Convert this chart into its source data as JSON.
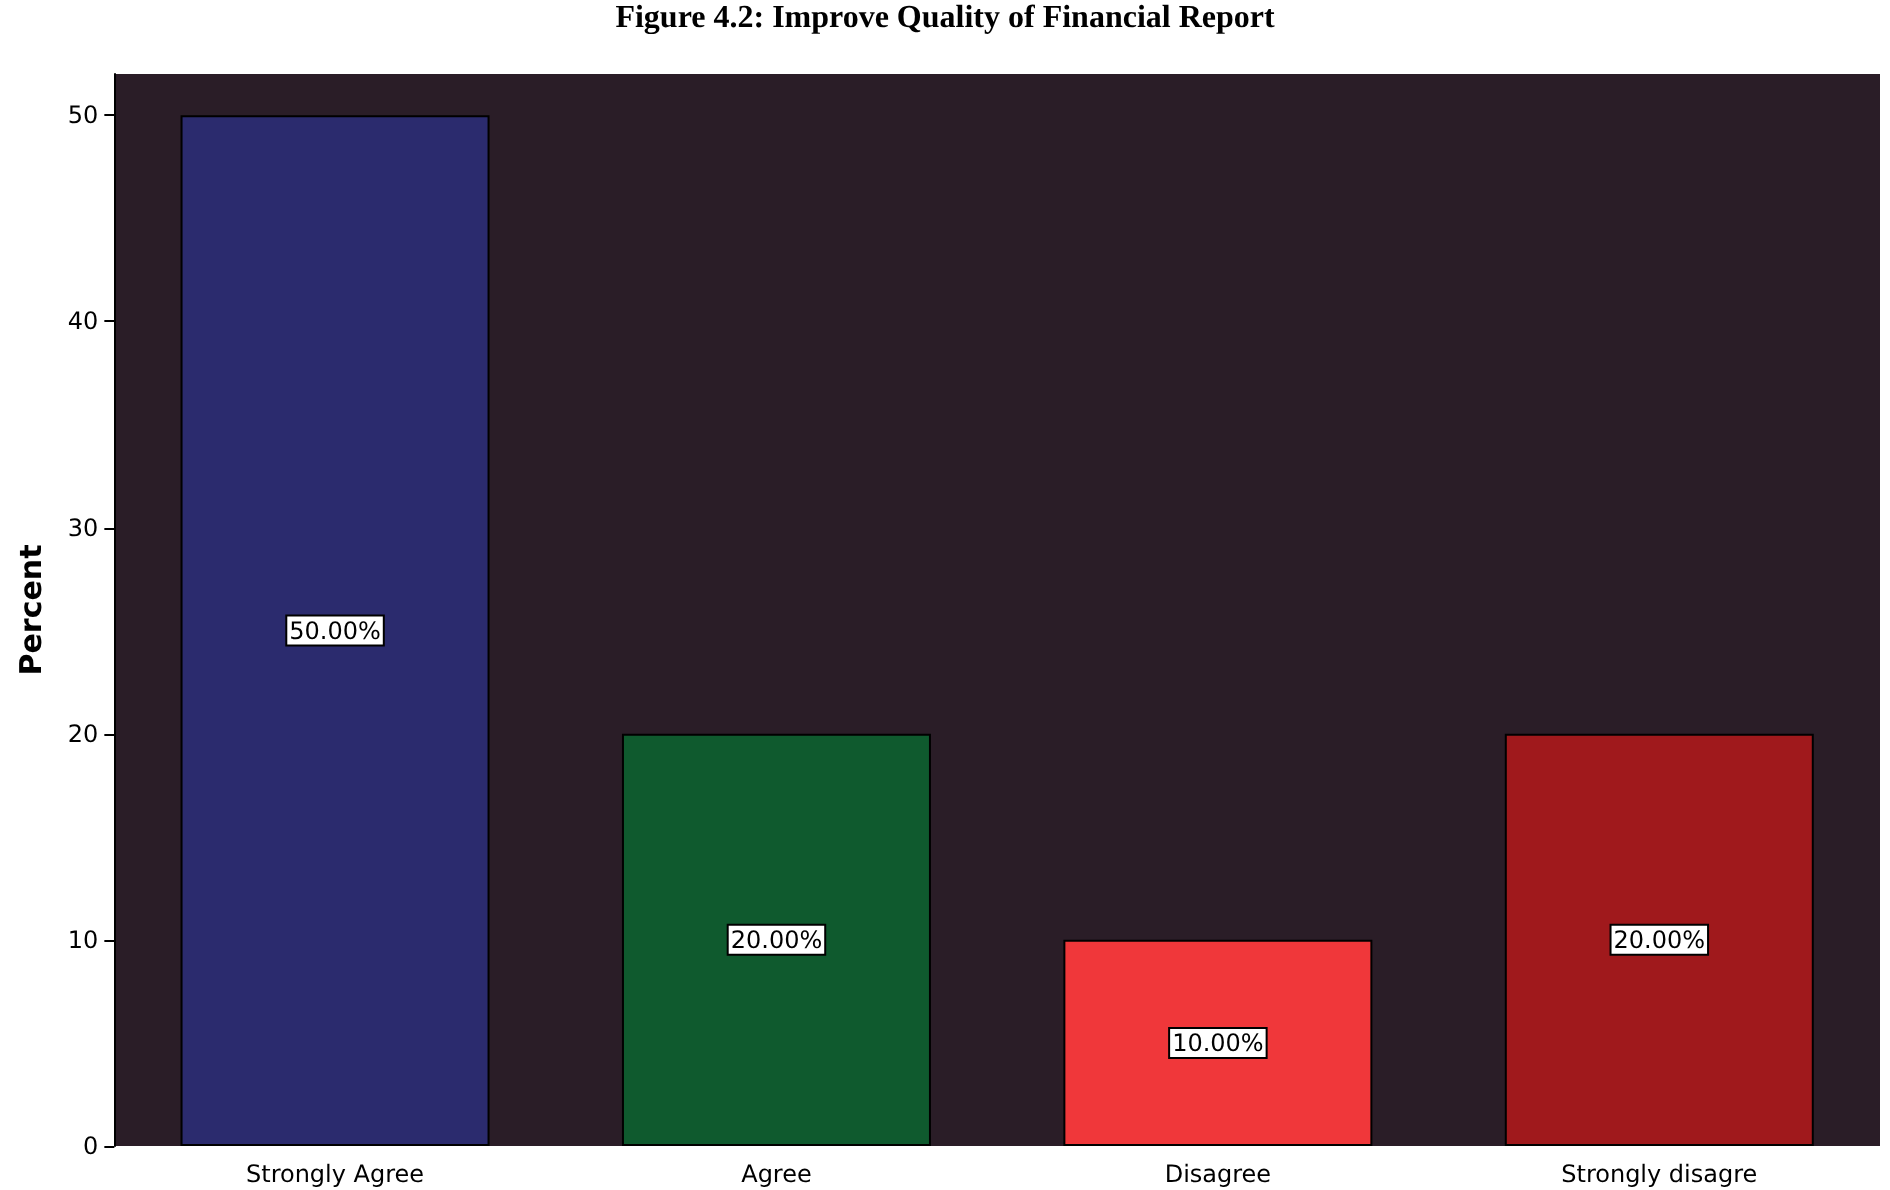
{
  "chart_data": {
    "type": "bar",
    "title": "Figure 4.2: Improve Quality of Financial Report",
    "ylabel": "Percent",
    "categories": [
      "Strongly Agree",
      "Agree",
      "Disagree",
      "Strongly disagre"
    ],
    "values": [
      50,
      20,
      10,
      20
    ],
    "colors": [
      "#2b2b6e",
      "#0f5a2e",
      "#f0373a",
      "#a0191c"
    ],
    "value_labels": [
      "50.00%",
      "20.00%",
      "10.00%",
      "20.00%"
    ],
    "ylim": [
      0,
      52
    ],
    "yticks": [
      0,
      10,
      20,
      30,
      40,
      50
    ],
    "grid": false
  }
}
